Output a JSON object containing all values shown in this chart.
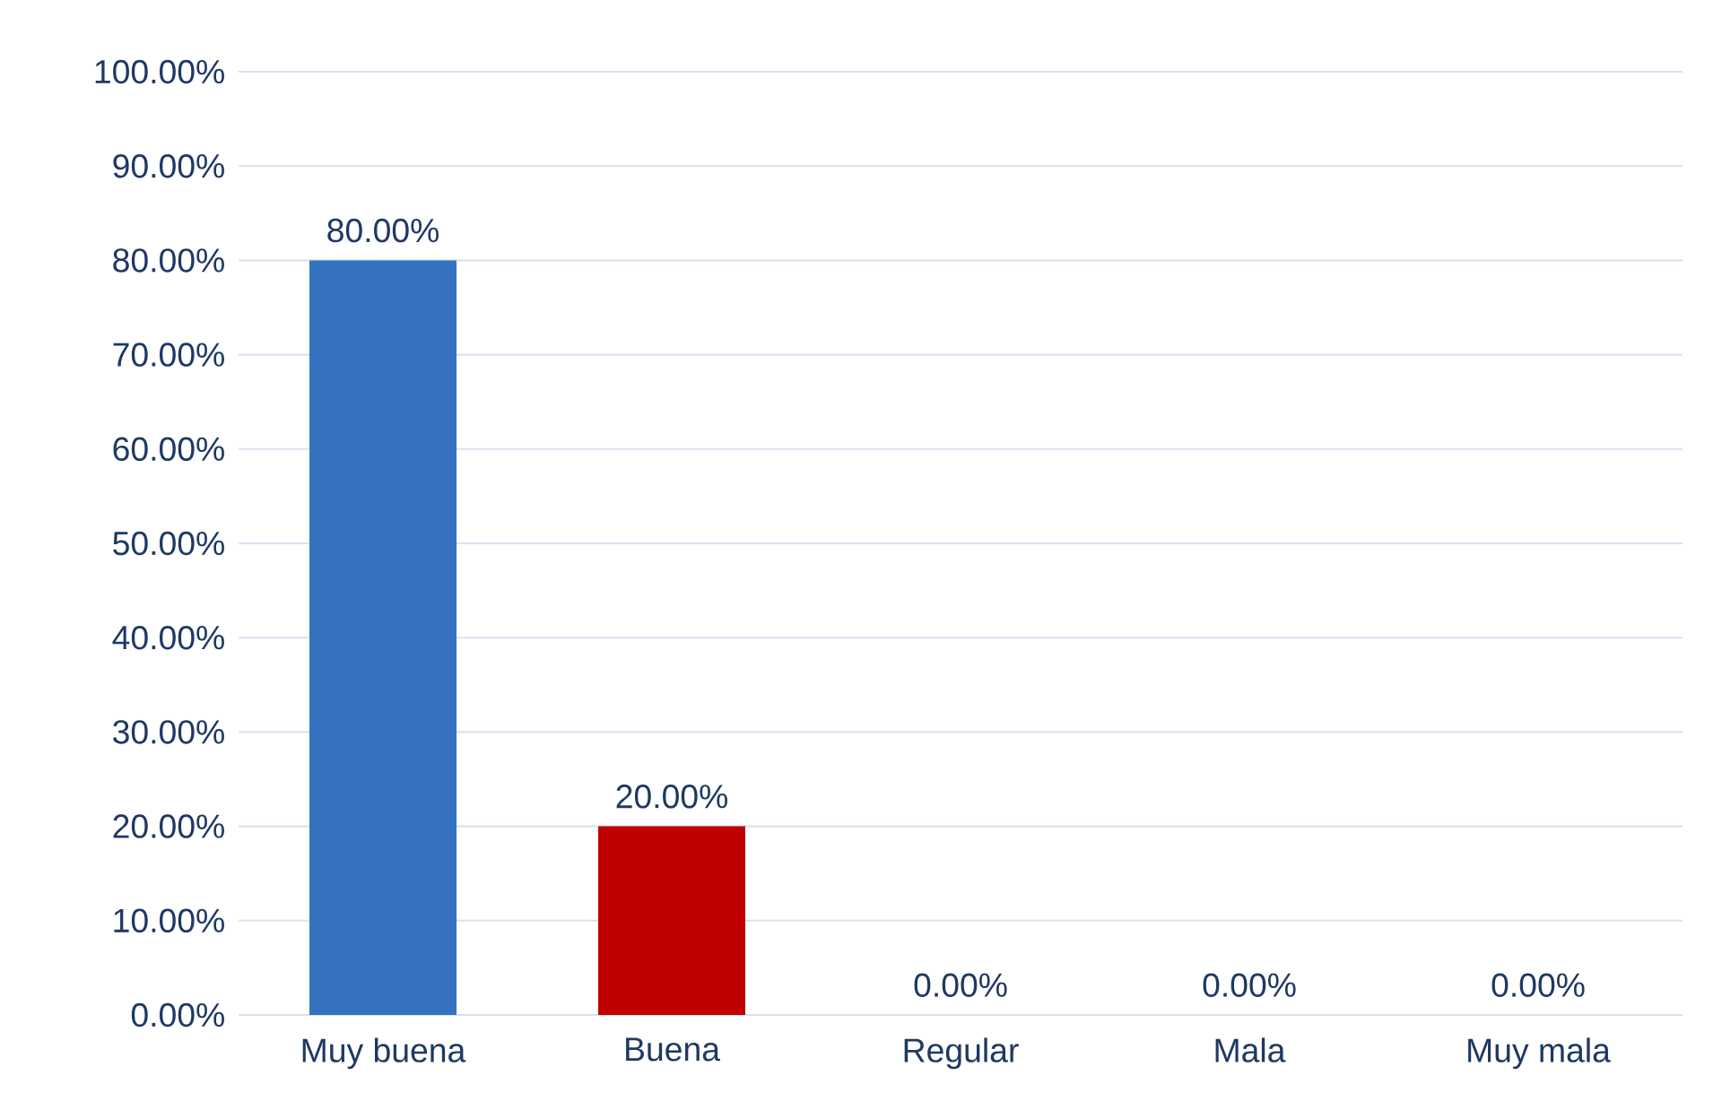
{
  "chart_data": {
    "type": "bar",
    "categories": [
      "Muy buena",
      "Buena",
      "Regular",
      "Mala",
      "Muy mala"
    ],
    "values": [
      80,
      20,
      0,
      0,
      0
    ],
    "colors": [
      "#3572c0",
      "#c00000",
      "#3572c0",
      "#3572c0",
      "#3572c0"
    ],
    "value_labels": [
      "80.00%",
      "20.00%",
      "0.00%",
      "0.00%",
      "0.00%"
    ],
    "ylim": [
      0,
      100
    ],
    "yticks": [
      {
        "value": 0,
        "label": "0.00%"
      },
      {
        "value": 10,
        "label": "10.00%"
      },
      {
        "value": 20,
        "label": "20.00%"
      },
      {
        "value": 30,
        "label": "30.00%"
      },
      {
        "value": 40,
        "label": "40.00%"
      },
      {
        "value": 50,
        "label": "50.00%"
      },
      {
        "value": 60,
        "label": "60.00%"
      },
      {
        "value": 70,
        "label": "70.00%"
      },
      {
        "value": 80,
        "label": "80.00%"
      },
      {
        "value": 90,
        "label": "90.00%"
      },
      {
        "value": 100,
        "label": "100.00%"
      }
    ],
    "grid": "y"
  }
}
